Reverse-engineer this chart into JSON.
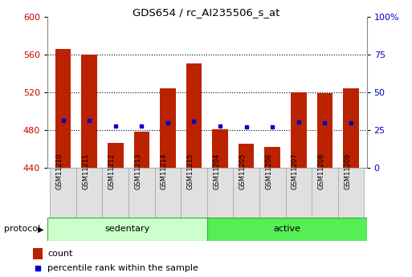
{
  "title": "GDS654 / rc_AI235506_s_at",
  "samples": [
    "GSM11210",
    "GSM11211",
    "GSM11212",
    "GSM11213",
    "GSM11214",
    "GSM11215",
    "GSM11204",
    "GSM11205",
    "GSM11206",
    "GSM11207",
    "GSM11208",
    "GSM11209"
  ],
  "bar_values": [
    566,
    560,
    466,
    478,
    524,
    550,
    481,
    465,
    462,
    520,
    519,
    524
  ],
  "percentile_values": [
    490,
    490,
    484,
    484,
    487,
    489,
    484,
    483,
    483,
    488,
    487,
    487
  ],
  "ymin": 440,
  "ymax": 600,
  "yright_min": 0,
  "yright_max": 100,
  "yticks_left": [
    440,
    480,
    520,
    560,
    600
  ],
  "yticks_right": [
    0,
    25,
    50,
    75,
    100
  ],
  "bar_color": "#bb2200",
  "percentile_color": "#0000cc",
  "sedentary_color": "#ccffcc",
  "active_color": "#55ee55",
  "group_label": "protocol",
  "legend_count": "count",
  "legend_percentile": "percentile rank within the sample",
  "background_color": "#ffffff",
  "tick_label_color_left": "#cc0000",
  "tick_label_color_right": "#0000cc",
  "xlabel_bg": "#dddddd",
  "border_color": "#888888"
}
